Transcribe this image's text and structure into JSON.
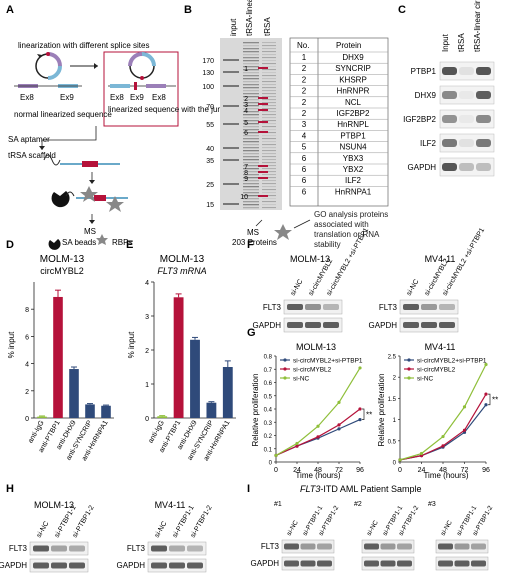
{
  "colors": {
    "red": "#b5123a",
    "blue": "#2f4a7a",
    "green": "#8fbf3a",
    "gray": "#c9c9c9",
    "blot": "#444444"
  },
  "panel_labels": {
    "A": "A",
    "B": "B",
    "C": "C",
    "D": "D",
    "E": "E",
    "F": "F",
    "G": "G",
    "H": "H",
    "I": "I"
  },
  "panelA": {
    "title": "linearization with different splice sites",
    "ex8": "Ex8",
    "ex9": "Ex9",
    "normal_seq": "normal linearized sequence",
    "junction_seq": "linearized sequence with the junction point",
    "sa_aptamer": "SA aptamer",
    "trsa_scaffold": "tRSA scaffold",
    "ms": "MS",
    "sa_beads": "SA beads",
    "rbps": "RBPs"
  },
  "panelB": {
    "lanes": [
      "input",
      "tRSA-linear circMYBL2",
      "tRSA"
    ],
    "mw": [
      "170",
      "130",
      "100",
      "70",
      "55",
      "40",
      "35",
      "25",
      "15"
    ],
    "band_numbers": [
      "1",
      "2",
      "3",
      "4",
      "5",
      "6",
      "7",
      "8",
      "9",
      "10"
    ],
    "table_header": {
      "no": "No.",
      "protein": "Protein"
    },
    "table_rows": [
      {
        "no": "1",
        "protein": "DHX9"
      },
      {
        "no": "2",
        "protein": "SYNCRIP"
      },
      {
        "no": "2",
        "protein": "KHSRP"
      },
      {
        "no": "2",
        "protein": "HnRNPR"
      },
      {
        "no": "2",
        "protein": "NCL"
      },
      {
        "no": "2",
        "protein": "IGF2BP2"
      },
      {
        "no": "3",
        "protein": "HnRNPL"
      },
      {
        "no": "4",
        "protein": "PTBP1"
      },
      {
        "no": "5",
        "protein": "NSUN4"
      },
      {
        "no": "6",
        "protein": "YBX3"
      },
      {
        "no": "6",
        "protein": "YBX2"
      },
      {
        "no": "6",
        "protein": "ILF2"
      },
      {
        "no": "6",
        "protein": "HnRNPA1"
      }
    ],
    "ms_label": "MS",
    "ms_count": "203 Proteins",
    "go_text": "GO analysis proteins associated with translation or RNA stability"
  },
  "panelC": {
    "lanes": [
      "Input",
      "tRSA",
      "tRSA-linear circMYBL2"
    ],
    "rows": [
      "PTBP1",
      "DHX9",
      "IGF2BP2",
      "ILF2",
      "GAPDH"
    ]
  },
  "chart_data": [
    {
      "type": "bar",
      "title": "MOLM-13",
      "subtitle": "circMYBL2",
      "ylabel": "% input",
      "ylim": [
        0,
        10
      ],
      "yticks": [
        0,
        2,
        4,
        6,
        8
      ],
      "categories": [
        "anti-IgG",
        "anti-PTBP1",
        "anti-DHX9",
        "anti-SYNCRIP",
        "anti-HnRNPA1"
      ],
      "values": [
        0.1,
        8.9,
        3.6,
        1.0,
        0.9
      ],
      "errors": [
        0.05,
        0.5,
        0.15,
        0.06,
        0.05
      ]
    },
    {
      "type": "bar",
      "title": "MOLM-13",
      "subtitle": "FLT3 mRNA",
      "ylabel": "% input",
      "ylim": [
        0,
        4
      ],
      "yticks": [
        0,
        1,
        2,
        3,
        4
      ],
      "categories": [
        "anti-IgG",
        "anti-PTBP1",
        "anti-DHX9",
        "anti-SYNCRIP",
        "anti-HnRNPA1"
      ],
      "values": [
        0.05,
        3.55,
        2.3,
        0.45,
        1.5
      ],
      "errors": [
        0.02,
        0.1,
        0.07,
        0.03,
        0.18
      ]
    },
    {
      "type": "line",
      "title": "MOLM-13",
      "xlabel": "Time (hours)",
      "ylabel": "Relative proliferation",
      "x": [
        0,
        24,
        48,
        72,
        96
      ],
      "ylim": [
        0,
        0.8
      ],
      "yticks": [
        0,
        0.1,
        0.2,
        0.3,
        0.4,
        0.5,
        0.6,
        0.7,
        0.8
      ],
      "series": [
        {
          "name": "si-circMYBL2+si-PTBP1",
          "values": [
            0.05,
            0.12,
            0.18,
            0.25,
            0.32
          ]
        },
        {
          "name": "si-circMYBL2",
          "values": [
            0.05,
            0.12,
            0.19,
            0.28,
            0.4
          ]
        },
        {
          "name": "si-NC",
          "values": [
            0.05,
            0.14,
            0.27,
            0.45,
            0.71
          ]
        }
      ],
      "sig": "**"
    },
    {
      "type": "line",
      "title": "MV4-11",
      "xlabel": "Time (hours)",
      "ylabel": "Relative proliferation",
      "x": [
        0,
        24,
        48,
        72,
        96
      ],
      "ylim": [
        0,
        2.5
      ],
      "yticks": [
        0,
        0.5,
        1,
        1.5,
        2,
        2.5
      ],
      "series": [
        {
          "name": "si-circMYBL2+si-PTBP1",
          "values": [
            0.05,
            0.15,
            0.35,
            0.7,
            1.35
          ]
        },
        {
          "name": "si-circMYBL2",
          "values": [
            0.05,
            0.15,
            0.38,
            0.75,
            1.6
          ]
        },
        {
          "name": "si-NC",
          "values": [
            0.05,
            0.2,
            0.6,
            1.3,
            2.3
          ]
        }
      ],
      "sig": "**"
    }
  ],
  "panelF": {
    "left_title": "MOLM-13",
    "right_title": "MV4-11",
    "lanes": [
      "si-NC",
      "si-circMYBL2",
      "si-circMYBL2 +si-PTBP1"
    ],
    "rows": [
      "FLT3",
      "GAPDH"
    ]
  },
  "panelH": {
    "left_title": "MOLM-13",
    "right_title": "MV4-11",
    "lanes": [
      "si-NC",
      "si-PTBP1-1",
      "si-PTBP1-2"
    ],
    "rows": [
      "FLT3",
      "GAPDH"
    ]
  },
  "panelI": {
    "title_italic": "FLT3",
    "title_rest": "-ITD AML Patient Sample",
    "samples": [
      "#1",
      "#2",
      "#3"
    ],
    "lanes": [
      "si-NC",
      "si-PTBP1-1",
      "si-PTBP1-2"
    ],
    "rows": [
      "FLT3",
      "GAPDH"
    ]
  }
}
